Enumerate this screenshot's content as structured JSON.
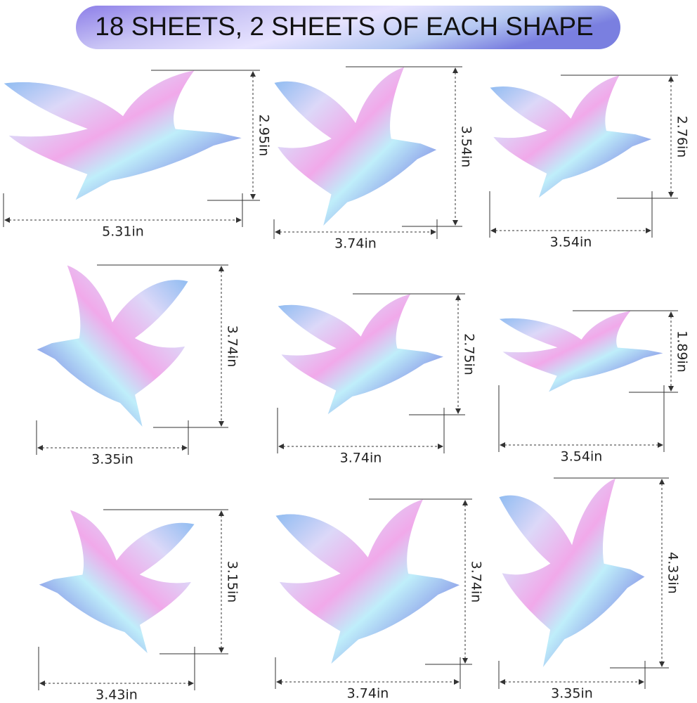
{
  "title": "18 SHEETS, 2 SHEETS OF EACH SHAPE",
  "shapes": [
    {
      "width": "5.31in",
      "height": "2.95in"
    },
    {
      "width": "3.74in",
      "height": "3.54in"
    },
    {
      "width": "3.54in",
      "height": "2.76in"
    },
    {
      "width": "3.35in",
      "height": "3.74in"
    },
    {
      "width": "3.74in",
      "height": "2.75in"
    },
    {
      "width": "3.54in",
      "height": "1.89in"
    },
    {
      "width": "3.43in",
      "height": "3.15in"
    },
    {
      "width": "3.74in",
      "height": "3.74in"
    },
    {
      "width": "3.35in",
      "height": "4.33in"
    }
  ]
}
